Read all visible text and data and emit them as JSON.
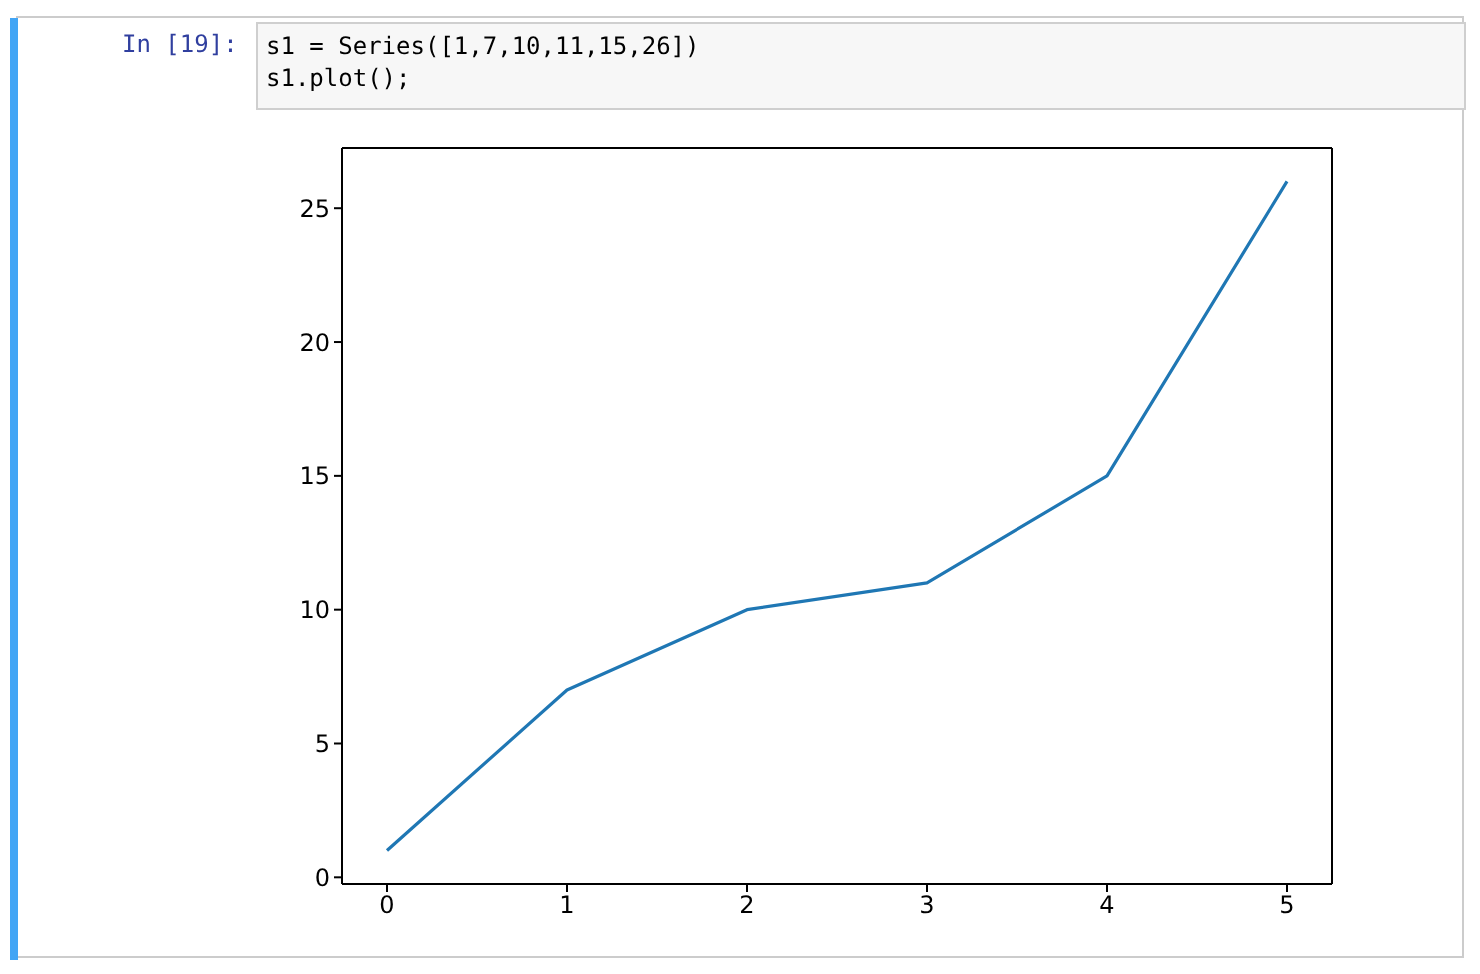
{
  "chart_data": {
    "type": "line",
    "annotations": [
      "In [19]:",
      "s1 = Series([1,7,10,11,15,26])",
      "s1.plot();"
    ],
    "x": [
      0,
      1,
      2,
      3,
      4,
      5
    ],
    "series": [
      {
        "color": "#1f77b4",
        "values": [
          1,
          7,
          10,
          11,
          15,
          26
        ]
      }
    ],
    "xlim": [
      -0.25,
      5.25
    ],
    "xticks": [
      0,
      1,
      2,
      3,
      4,
      5
    ],
    "ylim": [
      -0.25,
      27.25
    ],
    "yticks": [
      0,
      5,
      10,
      15,
      20,
      25
    ],
    "grid": false,
    "marker": "none",
    "line_style": "solid"
  }
}
